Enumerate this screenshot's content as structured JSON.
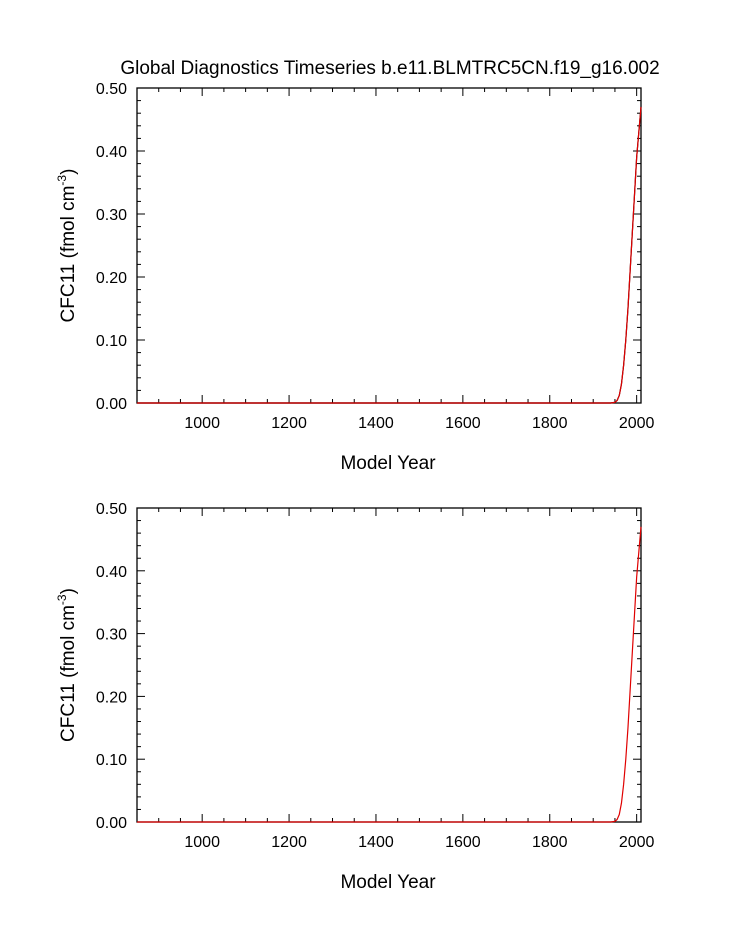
{
  "page": {
    "title": "Global Diagnostics Timeseries b.e11.BLMTRC5CN.f19_g16.002"
  },
  "chart_data": [
    {
      "type": "line",
      "xlabel": "Model Year",
      "ylabel_main": "CFC11 (fmol cm",
      "ylabel_sup": "-3",
      "ylabel_close": ")",
      "xlim": [
        850,
        2010
      ],
      "ylim": [
        0,
        0.5
      ],
      "xticks": [
        1000,
        1200,
        1400,
        1600,
        1800,
        2000
      ],
      "xtick_labels": [
        "1000",
        "1200",
        "1400",
        "1600",
        "1800",
        "2000"
      ],
      "yticks": [
        0,
        0.1,
        0.2,
        0.3,
        0.4,
        0.5
      ],
      "ytick_labels": [
        "0.00",
        "0.10",
        "0.20",
        "0.30",
        "0.40",
        "0.50"
      ],
      "grid": false,
      "series": [
        {
          "color": "#000000",
          "x": [
            850,
            1940,
            1950,
            1955,
            1960,
            1965,
            1970,
            1975,
            1980,
            1985,
            1990,
            1995,
            2000,
            2005,
            2010
          ],
          "y": [
            0,
            0,
            0.001,
            0.004,
            0.012,
            0.03,
            0.06,
            0.1,
            0.15,
            0.21,
            0.27,
            0.33,
            0.39,
            0.43,
            0.47
          ]
        },
        {
          "color": "#e00000",
          "x": [
            850,
            1940,
            1950,
            1955,
            1960,
            1965,
            1970,
            1975,
            1980,
            1985,
            1990,
            1995,
            2000,
            2005,
            2010
          ],
          "y": [
            0,
            0,
            0.001,
            0.004,
            0.012,
            0.03,
            0.06,
            0.1,
            0.15,
            0.21,
            0.27,
            0.33,
            0.39,
            0.43,
            0.47
          ]
        }
      ]
    },
    {
      "type": "line",
      "xlabel": "Model Year",
      "ylabel_main": "CFC11 (fmol cm",
      "ylabel_sup": "-3",
      "ylabel_close": ")",
      "xlim": [
        850,
        2010
      ],
      "ylim": [
        0,
        0.5
      ],
      "xticks": [
        1000,
        1200,
        1400,
        1600,
        1800,
        2000
      ],
      "xtick_labels": [
        "1000",
        "1200",
        "1400",
        "1600",
        "1800",
        "2000"
      ],
      "yticks": [
        0,
        0.1,
        0.2,
        0.3,
        0.4,
        0.5
      ],
      "ytick_labels": [
        "0.00",
        "0.10",
        "0.20",
        "0.30",
        "0.40",
        "0.50"
      ],
      "grid": false,
      "series": [
        {
          "color": "#e00000",
          "x": [
            850,
            1940,
            1950,
            1955,
            1960,
            1965,
            1970,
            1975,
            1980,
            1985,
            1990,
            1995,
            2000,
            2005,
            2010
          ],
          "y": [
            0,
            0,
            0.001,
            0.004,
            0.012,
            0.03,
            0.06,
            0.1,
            0.15,
            0.21,
            0.27,
            0.33,
            0.39,
            0.43,
            0.47
          ]
        }
      ]
    }
  ]
}
